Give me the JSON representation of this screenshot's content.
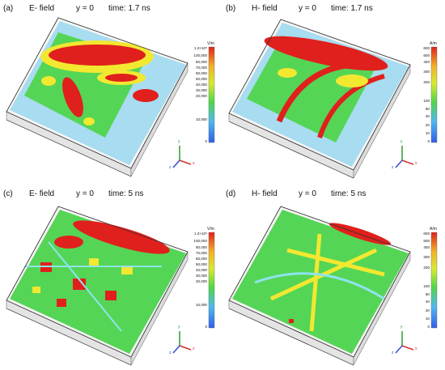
{
  "panels": [
    {
      "label": "(a)",
      "field": "E- field",
      "y": "y = 0",
      "time": "time: 1.7 ns",
      "unit": "V/m",
      "ticks": [
        "1.2×10⁵",
        "100,000",
        "80,000",
        "70,000",
        "60,000",
        "50,000",
        "40,000",
        "30,000",
        "20,000",
        "10,000",
        "0"
      ]
    },
    {
      "label": "(b)",
      "field": "H- field",
      "y": "y = 0",
      "time": "time: 1.7 ns",
      "unit": "A/m",
      "ticks": [
        "600",
        "500",
        "400",
        "300",
        "200",
        "100",
        "60",
        "40",
        "20",
        "10",
        "0"
      ]
    },
    {
      "label": "(c)",
      "field": "E- field",
      "y": "y = 0",
      "time": "time: 5 ns",
      "unit": "V/m",
      "ticks": [
        "1.2×10⁵",
        "100,000",
        "80,000",
        "70,000",
        "60,000",
        "50,000",
        "40,000",
        "30,000",
        "20,000",
        "10,000",
        "0"
      ]
    },
    {
      "label": "(d)",
      "field": "H- field",
      "y": "y = 0",
      "time": "time: 5 ns",
      "unit": "A/m",
      "ticks": [
        "600",
        "500",
        "400",
        "300",
        "200",
        "100",
        "60",
        "40",
        "20",
        "10",
        "0"
      ]
    }
  ],
  "axes": {
    "x": "x",
    "y": "y",
    "z": "z"
  },
  "colors": {
    "red": "#e0201c",
    "yellow": "#f2e830",
    "green": "#4fd64a",
    "cyan": "#8fe3f0",
    "blue": "#2f5fe8"
  }
}
